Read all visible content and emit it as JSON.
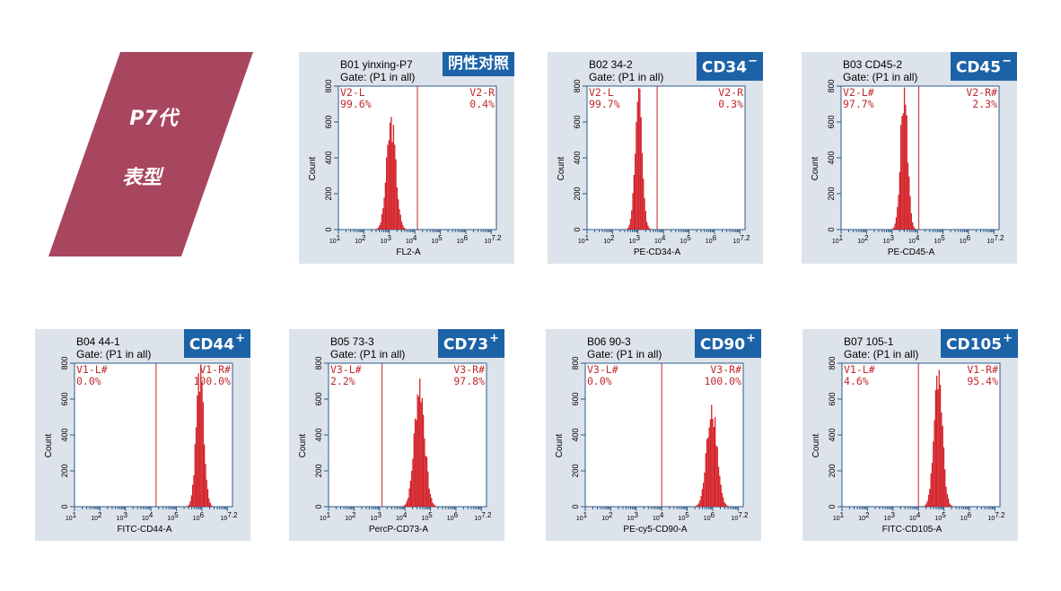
{
  "header": {
    "line1": "P7代",
    "line2": "表型",
    "color": "#a8465f"
  },
  "colors": {
    "histogram": "#d3232a",
    "gate_line": "#c0282d",
    "badge_bg": "#1c62a7",
    "panel_bg": "#dde3ea"
  },
  "chart_data": [
    {
      "type": "histogram",
      "title": "B01 yinxing-P7",
      "gate": "Gate: (P1 in all)",
      "badge": "阴性对照",
      "badge_sup": "",
      "xlabel": "FL2-A",
      "ylabel": "Count",
      "ylim": [
        0,
        800
      ],
      "x_scale": "log10",
      "xlim": [
        1,
        7.2
      ],
      "yticks": [
        "0",
        "200",
        "400",
        "600",
        "800"
      ],
      "xticks": [
        "10^1",
        "10^2",
        "10^3",
        "10^4",
        "10^5",
        "10^6",
        "10^7.2"
      ],
      "gate_x": 4.1,
      "peak": {
        "center": 3.05,
        "sd": 0.18,
        "height": 610
      },
      "left_label": "V2-L",
      "left_value": "99.6%",
      "right_label": "V2-R",
      "right_value": "0.4%"
    },
    {
      "type": "histogram",
      "title": "B02 34-2",
      "gate": "Gate: (P1 in all)",
      "badge": "CD34",
      "badge_sup": "−",
      "xlabel": "PE-CD34-A",
      "ylabel": "Count",
      "ylim": [
        0,
        800
      ],
      "x_scale": "log10",
      "xlim": [
        1,
        7.2
      ],
      "yticks": [
        "0",
        "200",
        "400",
        "600",
        "800"
      ],
      "xticks": [
        "10^1",
        "10^2",
        "10^3",
        "10^4",
        "10^5",
        "10^6",
        "10^7.2"
      ],
      "gate_x": 3.75,
      "peak": {
        "center": 3.0,
        "sd": 0.14,
        "height": 760
      },
      "left_label": "V2-L",
      "left_value": "99.7%",
      "right_label": "V2-R",
      "right_value": "0.3%"
    },
    {
      "type": "histogram",
      "title": "B03 CD45-2",
      "gate": "Gate: (P1 in all)",
      "badge": "CD45",
      "badge_sup": "−",
      "xlabel": "PE-CD45-A",
      "ylabel": "Count",
      "ylim": [
        0,
        800
      ],
      "x_scale": "log10",
      "xlim": [
        1,
        7.2
      ],
      "yticks": [
        "0",
        "200",
        "400",
        "600",
        "800"
      ],
      "xticks": [
        "10^1",
        "10^2",
        "10^3",
        "10^4",
        "10^5",
        "10^6",
        "10^7.2"
      ],
      "gate_x": 4.05,
      "peak": {
        "center": 3.45,
        "sd": 0.14,
        "height": 780
      },
      "left_label": "V2-L#",
      "left_value": "97.7%",
      "right_label": "V2-R#",
      "right_value": "2.3%"
    },
    {
      "type": "histogram",
      "title": "B04 44-1",
      "gate": "Gate: (P1 in all)",
      "badge": "CD44",
      "badge_sup": "+",
      "xlabel": "FITC-CD44-A",
      "ylabel": "Count",
      "ylim": [
        0,
        800
      ],
      "x_scale": "log10",
      "xlim": [
        1,
        7.2
      ],
      "yticks": [
        "0",
        "200",
        "400",
        "600",
        "800"
      ],
      "xticks": [
        "10^1",
        "10^2",
        "10^3",
        "10^4",
        "10^5",
        "10^6",
        "10^7.2"
      ],
      "gate_x": 4.2,
      "peak": {
        "center": 5.9,
        "sd": 0.15,
        "height": 760
      },
      "left_label": "V1-L#",
      "left_value": "0.0%",
      "right_label": "V1-R#",
      "right_value": "100.0%"
    },
    {
      "type": "histogram",
      "title": "B05 73-3",
      "gate": "Gate: (P1 in all)",
      "badge": "CD73",
      "badge_sup": "+",
      "xlabel": "PercP-CD73-A",
      "ylabel": "Count",
      "ylim": [
        0,
        800
      ],
      "x_scale": "log10",
      "xlim": [
        1,
        7.2
      ],
      "yticks": [
        "0",
        "200",
        "400",
        "600",
        "800"
      ],
      "xticks": [
        "10^1",
        "10^2",
        "10^3",
        "10^4",
        "10^5",
        "10^6",
        "10^7.2"
      ],
      "gate_x": 3.1,
      "peak": {
        "center": 4.55,
        "sd": 0.2,
        "height": 700
      },
      "left_label": "V3-L#",
      "left_value": "2.2%",
      "right_label": "V3-R#",
      "right_value": "97.8%"
    },
    {
      "type": "histogram",
      "title": "B06 90-3",
      "gate": "Gate: (P1 in all)",
      "badge": "CD90",
      "badge_sup": "+",
      "xlabel": "PE-cy5-CD90-A",
      "ylabel": "Count",
      "ylim": [
        0,
        800
      ],
      "x_scale": "log10",
      "xlim": [
        1,
        7.2
      ],
      "yticks": [
        "0",
        "200",
        "400",
        "600",
        "800"
      ],
      "xticks": [
        "10^1",
        "10^2",
        "10^3",
        "10^4",
        "10^5",
        "10^6",
        "10^7.2"
      ],
      "gate_x": 4.0,
      "peak": {
        "center": 5.95,
        "sd": 0.2,
        "height": 580
      },
      "left_label": "V3-L#",
      "left_value": "0.0%",
      "right_label": "V3-R#",
      "right_value": "100.0%"
    },
    {
      "type": "histogram",
      "title": "B07 105-1",
      "gate": "Gate: (P1 in all)",
      "badge": "CD105",
      "badge_sup": "+",
      "xlabel": "FITC-CD105-A",
      "ylabel": "Count",
      "ylim": [
        0,
        800
      ],
      "x_scale": "log10",
      "xlim": [
        1,
        7.2
      ],
      "yticks": [
        "0",
        "200",
        "400",
        "600",
        "800"
      ],
      "xticks": [
        "10^1",
        "10^2",
        "10^3",
        "10^4",
        "10^5",
        "10^6",
        "10^7.2"
      ],
      "gate_x": 4.0,
      "peak": {
        "center": 4.75,
        "sd": 0.17,
        "height": 720
      },
      "left_label": "V1-L#",
      "left_value": "4.6%",
      "right_label": "V1-R#",
      "right_value": "95.4%"
    }
  ]
}
